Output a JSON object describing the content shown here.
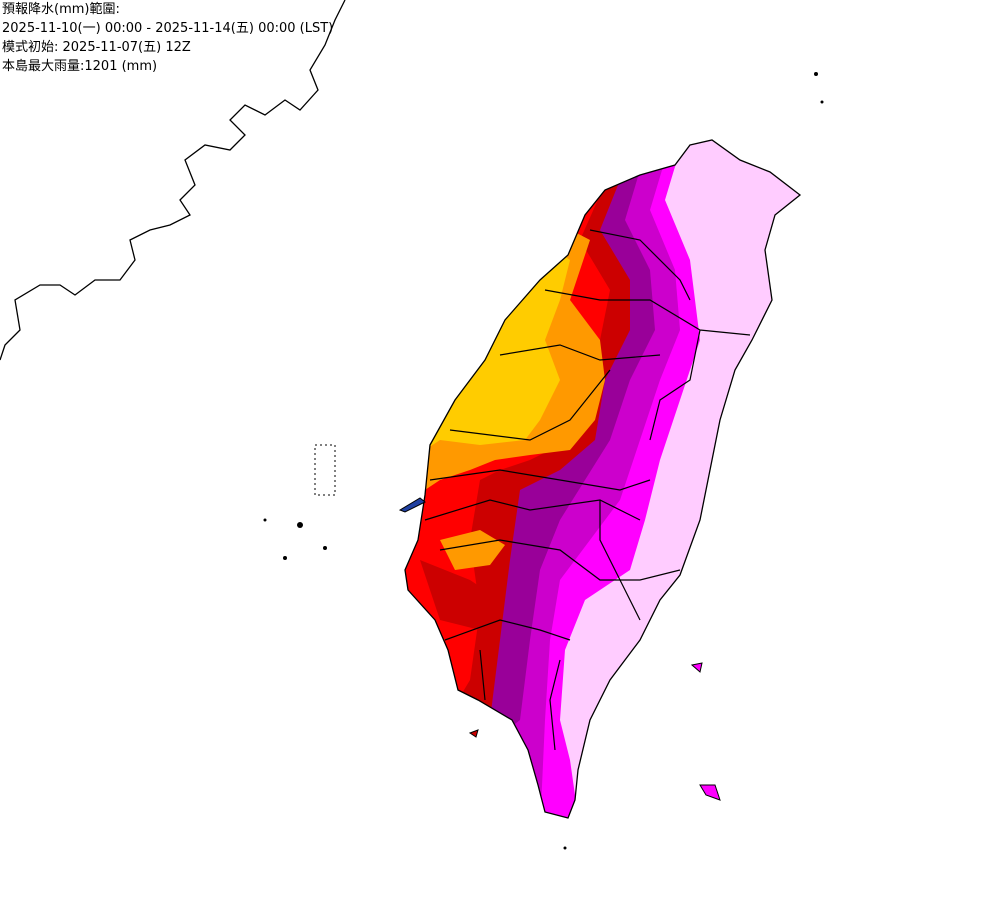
{
  "header": {
    "lines": [
      "預報降水(mm)範圍:",
      "2025-11-10(一) 00:00 - 2025-11-14(五) 00:00 (LST)",
      "模式初始: 2025-11-07(五) 12Z",
      "本島最大雨量:1201 (mm)"
    ]
  }
}
